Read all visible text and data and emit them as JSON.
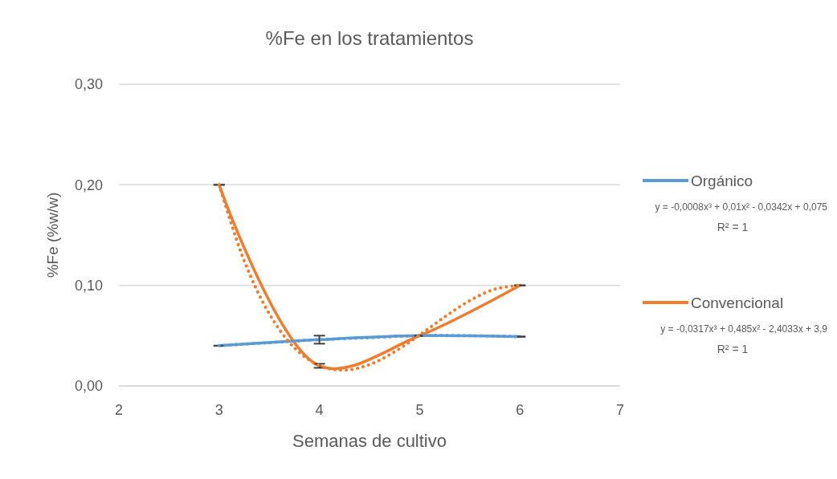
{
  "chart_data": {
    "type": "line",
    "title": "%Fe en los tratamientos",
    "xlabel": "Semanas de cultivo",
    "ylabel": "%Fe (%w/w)",
    "x": [
      3,
      4,
      5,
      6
    ],
    "xlim": [
      2,
      7
    ],
    "xticks": [
      2,
      3,
      4,
      5,
      6,
      7
    ],
    "ylim": [
      0,
      0.3
    ],
    "yticks": [
      {
        "value": 0,
        "label": "0,00"
      },
      {
        "value": 0.1,
        "label": "0,10"
      },
      {
        "value": 0.2,
        "label": "0,20"
      },
      {
        "value": 0.3,
        "label": "0,30"
      }
    ],
    "grid": "y",
    "legend": "right",
    "marker": "none",
    "line_style": "solid",
    "series": [
      {
        "name": "Orgánico",
        "color": "#5b9bd5",
        "values": [
          0.04,
          0.046,
          0.05,
          0.049
        ],
        "errors": [
          0,
          0.004,
          0,
          0
        ]
      },
      {
        "name": "Convencional",
        "color": "#ed7d31",
        "values": [
          0.2,
          0.02,
          0.05,
          0.1
        ],
        "errors": [
          0,
          0.002,
          0,
          0
        ]
      },
      {
        "type": "line",
        "color": "#5b9bd5",
        "line_style": "dotted",
        "x": [
          3,
          3.5,
          4,
          4.5,
          5,
          5.5,
          6
        ],
        "values": [
          0.04,
          0.043,
          0.046,
          0.048,
          0.05,
          0.05,
          0.049
        ]
      },
      {
        "type": "line",
        "color": "#ed7d31",
        "line_style": "dotted",
        "x": [
          3,
          3.25,
          3.5,
          3.75,
          4,
          4.25,
          4.5,
          4.75,
          5,
          5.25,
          5.5,
          5.75,
          6
        ],
        "values": [
          0.2,
          0.1245,
          0.0718,
          0.038,
          0.0203,
          0.0157,
          0.0212,
          0.0339,
          0.0507,
          0.0686,
          0.0848,
          0.0962,
          0.1
        ]
      }
    ],
    "annotations": [
      "y = -0,0008x³ + 0,01x² - 0,0342x + 0,075",
      "R² = 1",
      "y = -0,0317x³ + 0,485x² - 2,4033x + 3,9",
      "R² = 1"
    ]
  }
}
